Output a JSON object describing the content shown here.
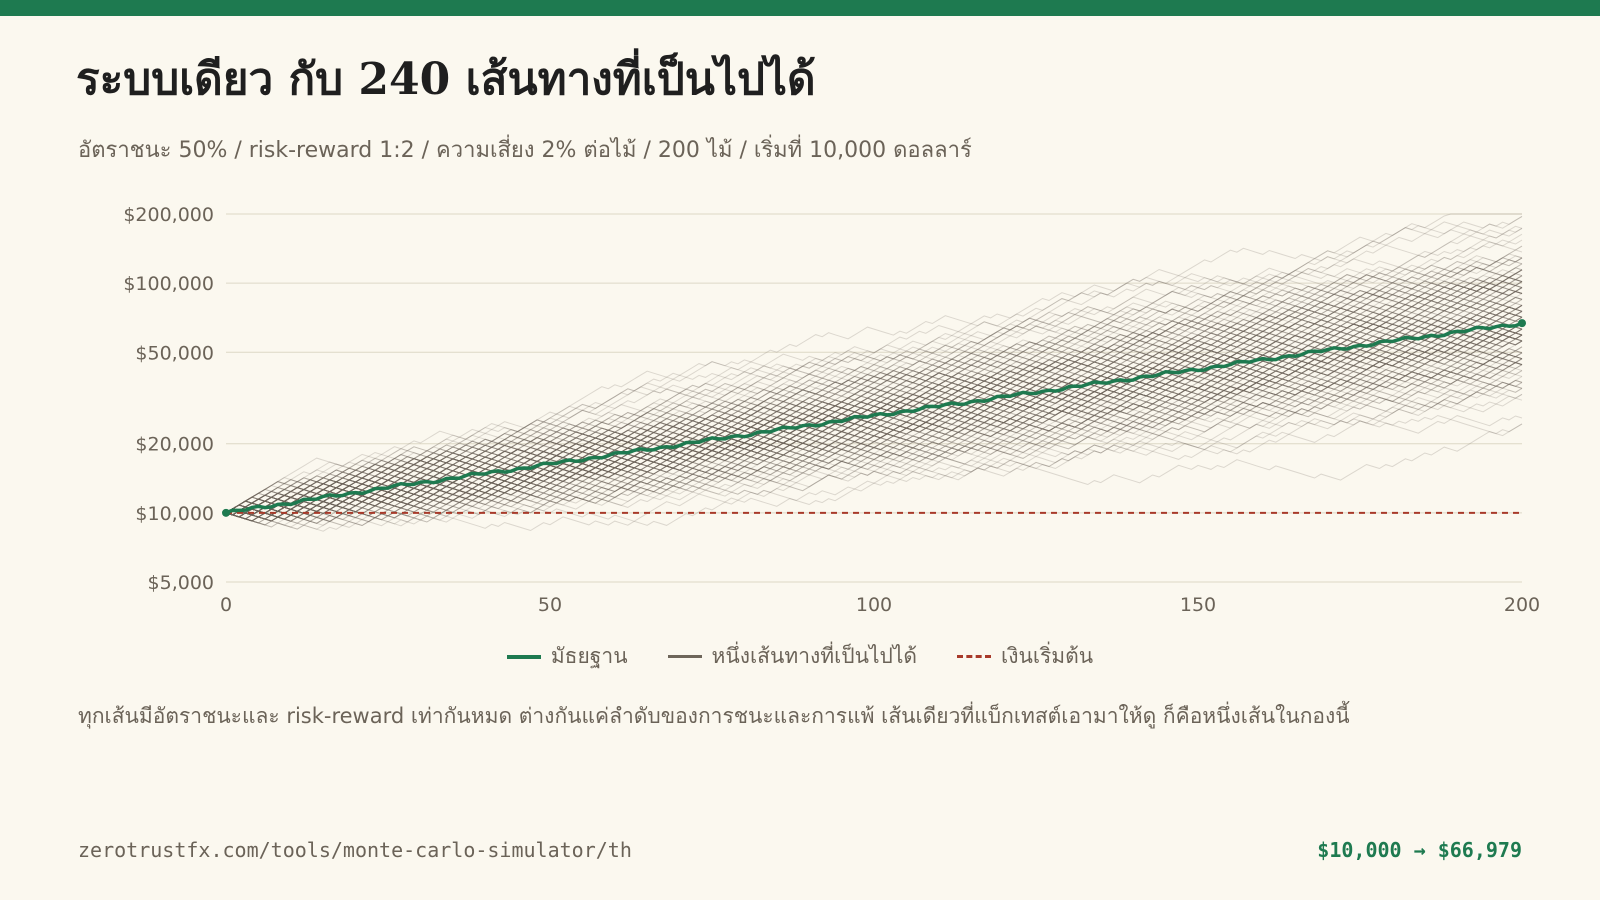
{
  "title": "ระบบเดียว กับ 240 เส้นทางที่เป็นไปได้",
  "subtitle": "อัตราชนะ 50% / risk-reward 1:2 / ความเสี่ยง 2% ต่อไม้ / 200 ไม้ / เริ่มที่ 10,000 ดอลลาร์",
  "note": "ทุกเส้นมีอัตราชนะและ risk-reward เท่ากันหมด ต่างกันแค่ลำดับของการชนะและการแพ้ เส้นเดียวที่แบ็กเทสต์เอามาให้ดู ก็คือหนึ่งเส้นในกองนี้",
  "footer": {
    "url": "zerotrustfx.com/tools/monte-carlo-simulator/th",
    "result": "$10,000 → $66,979"
  },
  "colors": {
    "accent": "#1e7a50",
    "path": "#6e665a",
    "baseline": "#a83a2a",
    "grid": "#ddd8c6"
  },
  "chart_data": {
    "type": "line",
    "x_scale": "linear",
    "y_scale": "log",
    "xlim": [
      0,
      200
    ],
    "ylim": [
      5000,
      200000
    ],
    "x_ticks": [
      0,
      50,
      100,
      150,
      200
    ],
    "x_tick_labels": [
      "0",
      "50",
      "100",
      "150",
      "200"
    ],
    "y_ticks": [
      5000,
      10000,
      20000,
      50000,
      100000,
      200000
    ],
    "y_tick_labels": [
      "$5,000",
      "$10,000",
      "$20,000",
      "$50,000",
      "$100,000",
      "$200,000"
    ],
    "grid": true,
    "legend_position": "bottom",
    "legend": {
      "median": "มัธยฐาน",
      "path": "หนึ่งเส้นทางที่เป็นไปได้",
      "baseline": "เงินเริ่มต้น"
    },
    "simulation": {
      "paths": 240,
      "trades": 200,
      "win_rate": 0.5,
      "risk_reward": 2,
      "risk_per_trade": 0.02,
      "start": 10000
    },
    "series": [
      {
        "name": "มัธยฐาน",
        "x": [
          0,
          25,
          50,
          75,
          100,
          125,
          150,
          175,
          200
        ],
        "values": [
          10000,
          12900,
          16300,
          20800,
          26500,
          33500,
          42200,
          53500,
          66979
        ]
      },
      {
        "name": "เงินเริ่มต้น",
        "x": [
          0,
          200
        ],
        "values": [
          10000,
          10000
        ]
      }
    ]
  }
}
